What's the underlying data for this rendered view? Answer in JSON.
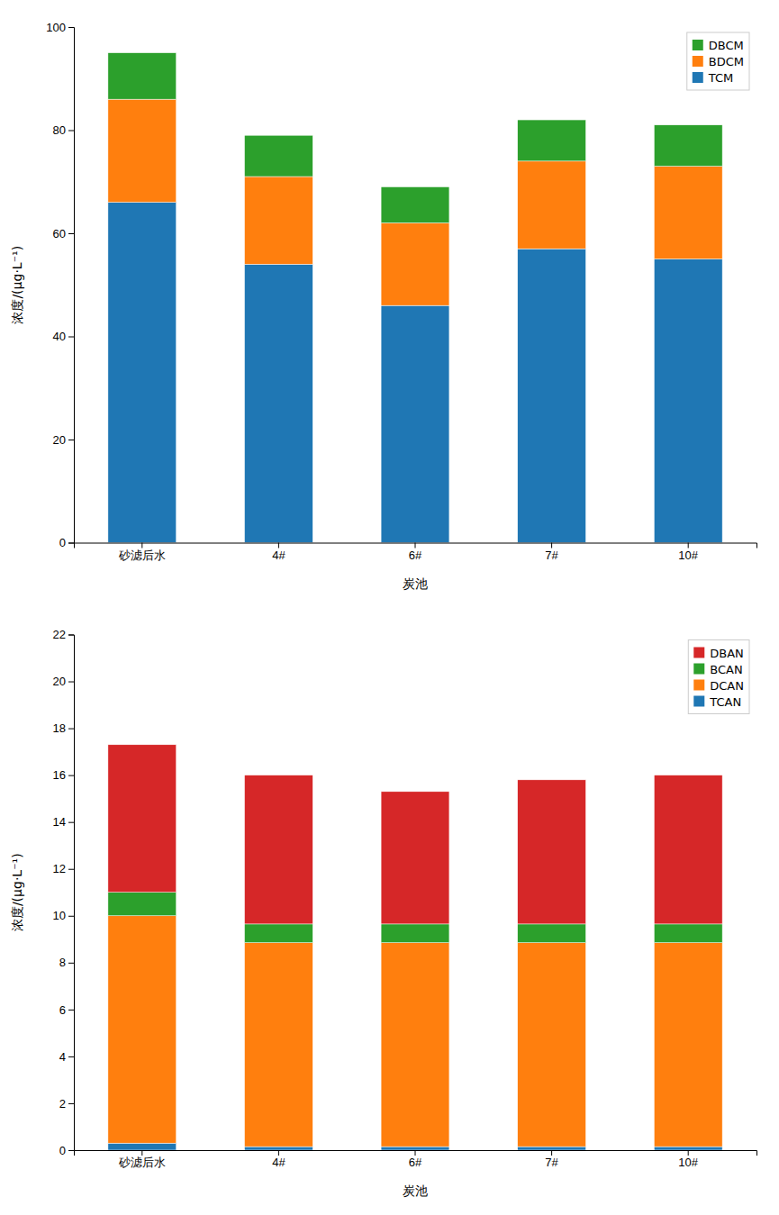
{
  "chart_data": [
    {
      "type": "bar",
      "stacked": true,
      "categories": [
        "砂滤后水",
        "4#",
        "6#",
        "7#",
        "10#"
      ],
      "xlabel": "炭池",
      "ylabel": "浓度/(μg·L⁻¹)",
      "series": [
        {
          "name": "TCM",
          "values": [
            66,
            54,
            46,
            57,
            55
          ]
        },
        {
          "name": "BDCM",
          "values": [
            20,
            17,
            16,
            17,
            18
          ]
        },
        {
          "name": "DBCM",
          "values": [
            9,
            8,
            7,
            8,
            8
          ]
        }
      ],
      "ylim": [
        0,
        100
      ],
      "yticks": [
        0,
        20,
        40,
        60,
        80,
        100
      ],
      "grid": false,
      "legend": "upper right"
    },
    {
      "type": "bar",
      "stacked": true,
      "categories": [
        "砂滤后水",
        "4#",
        "6#",
        "7#",
        "10#"
      ],
      "xlabel": "炭池",
      "ylabel": "浓度/(μg·L⁻¹)",
      "series": [
        {
          "name": "TCAN",
          "values": [
            0.3,
            0.15,
            0.15,
            0.15,
            0.15
          ]
        },
        {
          "name": "DCAN",
          "values": [
            9.7,
            8.7,
            8.7,
            8.7,
            8.7
          ]
        },
        {
          "name": "BCAN",
          "values": [
            1.0,
            0.8,
            0.8,
            0.8,
            0.8
          ]
        },
        {
          "name": "DBAN",
          "values": [
            6.3,
            6.35,
            5.65,
            6.15,
            6.35
          ]
        }
      ],
      "ylim": [
        0,
        22
      ],
      "yticks": [
        0,
        2,
        4,
        6,
        8,
        10,
        12,
        14,
        16,
        18,
        20,
        22
      ],
      "grid": false,
      "legend": "upper right"
    }
  ]
}
